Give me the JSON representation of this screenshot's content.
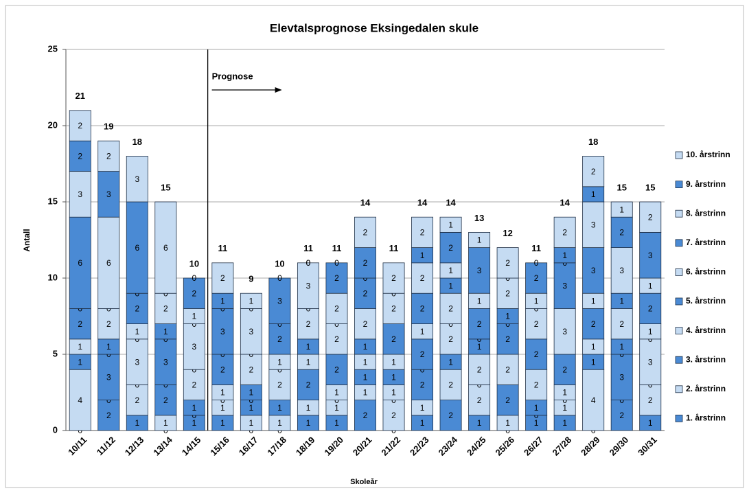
{
  "chart_data": {
    "type": "stacked_bar",
    "title": "Elevtalsprognose Eksingedalen skule",
    "x_label": "Skoleår",
    "y_label": "Antall",
    "annotation": "Prognose",
    "categories": [
      "10/11",
      "11/12",
      "12/13",
      "13/14",
      "14/15",
      "15/16",
      "16/17",
      "17/18",
      "18/19",
      "19/20",
      "20/21",
      "21/22",
      "22/23",
      "23/24",
      "24/25",
      "25/26",
      "26/27",
      "27/28",
      "28/29",
      "29/30",
      "30/31"
    ],
    "totals": [
      21,
      19,
      18,
      15,
      10,
      11,
      9,
      10,
      11,
      11,
      14,
      11,
      14,
      14,
      13,
      12,
      11,
      14,
      18,
      15,
      15
    ],
    "series": [
      {
        "name": "1. årstrinn",
        "color": "#4a8ad4",
        "values": [
          0,
          2,
          1,
          0,
          1,
          1,
          0,
          0,
          1,
          1,
          2,
          0,
          1,
          2,
          1,
          0,
          1,
          1,
          0,
          2,
          1
        ]
      },
      {
        "name": "2. årstrinn",
        "color": "#c5dbf2",
        "values": [
          4,
          0,
          2,
          1,
          0,
          1,
          1,
          1,
          1,
          1,
          1,
          2,
          1,
          2,
          2,
          1,
          0,
          1,
          4,
          0,
          2
        ]
      },
      {
        "name": "3. årstrinn",
        "color": "#4a8ad4",
        "values": [
          1,
          3,
          0,
          2,
          1,
          0,
          1,
          1,
          2,
          0,
          1,
          0,
          2,
          1,
          0,
          2,
          1,
          0,
          1,
          3,
          0
        ]
      },
      {
        "name": "4. årstrinn",
        "color": "#c5dbf2",
        "values": [
          1,
          0,
          3,
          0,
          2,
          1,
          0,
          2,
          1,
          1,
          1,
          1,
          0,
          2,
          2,
          2,
          2,
          1,
          1,
          0,
          3
        ]
      },
      {
        "name": "5. årstrinn",
        "color": "#4a8ad4",
        "values": [
          2,
          1,
          0,
          3,
          0,
          2,
          1,
          0,
          1,
          2,
          1,
          1,
          2,
          0,
          1,
          2,
          2,
          2,
          2,
          1,
          0
        ]
      },
      {
        "name": "6. årstrinn",
        "color": "#c5dbf2",
        "values": [
          0,
          2,
          1,
          0,
          3,
          0,
          2,
          1,
          2,
          2,
          2,
          1,
          1,
          2,
          0,
          0,
          2,
          3,
          1,
          2,
          1
        ]
      },
      {
        "name": "7. årstrinn",
        "color": "#4a8ad4",
        "values": [
          6,
          0,
          2,
          1,
          0,
          3,
          0,
          2,
          0,
          0,
          2,
          2,
          2,
          1,
          2,
          1,
          0,
          3,
          3,
          1,
          2
        ]
      },
      {
        "name": "8. årstrinn",
        "color": "#c5dbf2",
        "values": [
          3,
          6,
          0,
          2,
          1,
          0,
          3,
          0,
          3,
          2,
          0,
          2,
          2,
          1,
          1,
          2,
          1,
          0,
          3,
          3,
          1
        ]
      },
      {
        "name": "9. årstrinn",
        "color": "#4a8ad4",
        "values": [
          2,
          3,
          6,
          0,
          2,
          1,
          0,
          3,
          0,
          2,
          2,
          0,
          1,
          2,
          3,
          0,
          2,
          1,
          1,
          2,
          3
        ]
      },
      {
        "name": "10. årstrinn",
        "color": "#c5dbf2",
        "values": [
          2,
          2,
          3,
          6,
          0,
          2,
          1,
          0,
          0,
          0,
          2,
          2,
          2,
          1,
          1,
          2,
          0,
          2,
          2,
          1,
          2
        ]
      }
    ],
    "ylim": [
      0,
      25
    ],
    "yticks": [
      0,
      5,
      10,
      15,
      20,
      25
    ],
    "grid": true,
    "legend": "right"
  }
}
